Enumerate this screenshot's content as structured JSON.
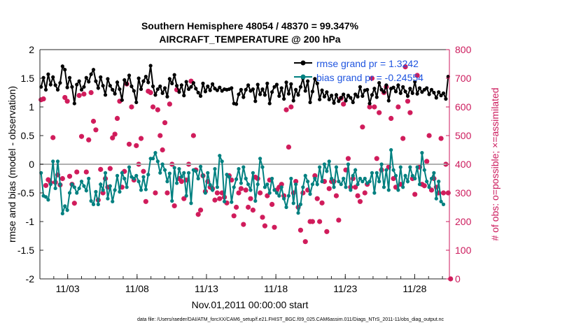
{
  "chart_data": {
    "type": "line",
    "title_line1": "Southern Hemisphere 48054 / 48370 = 99.347%",
    "title_line2": "AIRCRAFT_TEMPERATURE @ 200 hPa",
    "ylabel_left": "rmse and bias (model - observation)",
    "ylabel_right": "# of obs: o=possible; ×=assimilated",
    "xlabel": "Nov.01,2011 00:00:00 start",
    "footer": "data file: /Users/raeder/DAI/ATM_forcXX/CAM6_setup/f.e21.FHIST_BGC.f09_025.CAM6assim.011/Diags_NTrS_2011-11/obs_diag_output.nc",
    "legend": [
      "rmse grand pr = 1.3242",
      "bias grand pr = -0.24554"
    ],
    "xlim": [
      1.0,
      30.5
    ],
    "ylim_left": [
      -2,
      2
    ],
    "ylim_right": [
      0,
      800
    ],
    "left_ticks": [
      -2,
      -1.5,
      -1,
      -0.5,
      0,
      0.5,
      1,
      1.5,
      2
    ],
    "left_tick_labels": [
      "-2",
      "-1.5",
      "-1",
      "-0.5",
      "0",
      "0.5",
      "1",
      "1.5",
      "2"
    ],
    "right_ticks": [
      0,
      100,
      200,
      300,
      400,
      500,
      600,
      700,
      800
    ],
    "right_tick_labels": [
      "0",
      "100",
      "200",
      "300",
      "400",
      "500",
      "600",
      "700",
      "800"
    ],
    "x_ticks": [
      3,
      8,
      13,
      18,
      23,
      28
    ],
    "x_tick_labels": [
      "11/03",
      "11/08",
      "11/13",
      "11/18",
      "11/23",
      "11/28"
    ],
    "colors": {
      "rmse": "#000000",
      "bias": "#008080",
      "obs": "#d01a5a",
      "legend_text": "#1f55e0",
      "zero_line": "#b0b0b0",
      "right_axis": "#cc1a5c"
    },
    "series": [
      {
        "name": "rmse",
        "values": [
          1.35,
          1.51,
          1.3,
          1.57,
          1.39,
          1.52,
          1.38,
          1.3,
          1.42,
          1.71,
          1.65,
          1.34,
          1.51,
          1.35,
          1.06,
          1.39,
          1.45,
          1.3,
          1.35,
          1.51,
          1.44,
          1.57,
          1.65,
          1.45,
          1.33,
          1.52,
          1.37,
          1.21,
          1.49,
          1.37,
          1.3,
          1.23,
          1.43,
          1.31,
          1.12,
          1.47,
          1.4,
          1.55,
          1.36,
          1.28,
          1.08,
          1.5,
          1.31,
          1.45,
          1.53,
          1.43,
          1.72,
          1.36,
          1.21,
          1.31,
          1.36,
          1.24,
          1.33,
          1.18,
          1.49,
          1.41,
          1.56,
          1.37,
          1.26,
          1.38,
          1.2,
          1.44,
          1.31,
          1.35,
          1.42,
          1.32,
          1.25,
          1.19,
          1.41,
          1.27,
          1.36,
          1.29,
          1.4,
          1.32,
          1.29,
          1.34,
          1.28,
          1.31,
          1.3,
          1.31,
          1.33,
          1.06,
          1.05,
          1.22,
          1.3,
          1.17,
          1.3,
          1.38,
          1.28,
          1.31,
          1.1,
          1.39,
          1.22,
          1.31,
          1.21,
          1.41,
          1.06,
          1.26,
          1.35,
          1.39,
          1.19,
          1.33,
          1.14,
          1.43,
          1.23,
          1.4,
          1.11,
          1.3,
          1.21,
          1.35,
          1.5,
          1.28,
          1.45,
          1.08,
          1.27,
          1.49,
          1.41,
          1.13,
          1.29,
          1.18,
          1.26,
          1.13,
          1.2,
          1.07,
          1.21,
          1.1,
          1.16,
          1.22,
          1.11,
          1.2,
          1.16,
          1.08,
          1.22,
          1.18,
          1.35,
          1.19,
          1.29,
          1.3,
          1.06,
          1.21,
          1.32,
          1.17,
          1.42,
          1.3,
          1.26,
          1.38,
          1.11,
          1.32,
          1.34,
          1.27,
          1.38,
          1.24,
          1.35,
          1.27,
          1.19,
          1.32,
          1.24,
          1.44,
          1.23,
          1.33,
          1.26,
          1.3,
          1.33,
          1.22,
          1.3,
          1.25,
          1.16,
          1.26,
          1.2,
          1.24,
          1.14,
          1.53
        ]
      },
      {
        "name": "bias",
        "values": [
          -0.15,
          -0.55,
          -0.57,
          -0.62,
          -0.35,
          0.05,
          -0.42,
          0.05,
          -0.35,
          -0.86,
          -0.73,
          -0.8,
          -0.5,
          -0.35,
          -0.4,
          -0.5,
          -0.42,
          -0.3,
          -0.38,
          -0.46,
          -0.25,
          -0.64,
          -0.7,
          -0.48,
          -0.7,
          -0.35,
          -0.45,
          -0.15,
          -0.6,
          -0.38,
          -0.65,
          -0.45,
          -0.2,
          -0.48,
          -0.15,
          -0.25,
          -0.4,
          -0.05,
          -0.22,
          -0.25,
          -0.2,
          -0.3,
          -0.45,
          -0.22,
          -0.44,
          -0.18,
          0.1,
          0.1,
          0.2,
          0.05,
          -0.15,
          0.0,
          -0.1,
          -0.3,
          -0.16,
          -0.64,
          -0.06,
          -0.33,
          -0.08,
          -0.22,
          -0.15,
          -0.55,
          -0.15,
          -0.68,
          -0.1,
          -0.12,
          -0.25,
          -0.04,
          -0.2,
          -0.5,
          -0.15,
          -0.36,
          -0.45,
          -0.08,
          -0.4,
          0.15,
          0.05,
          -0.65,
          -0.18,
          -0.22,
          -0.66,
          -0.4,
          -0.26,
          -0.08,
          -0.33,
          -0.05,
          -0.25,
          -0.35,
          -0.45,
          -0.15,
          -0.64,
          -0.35,
          0.1,
          -0.05,
          -0.4,
          -0.35,
          -0.5,
          -0.25,
          -0.45,
          -0.5,
          -0.55,
          -0.4,
          -0.6,
          -0.75,
          -0.55,
          -0.25,
          -0.68,
          -0.35,
          -0.85,
          -0.7,
          -0.4,
          -0.2,
          -0.3,
          -0.52,
          -0.35,
          -0.25,
          -0.35,
          -0.05,
          -0.3,
          0.0,
          -0.12,
          0.05,
          -0.25,
          -0.4,
          -0.05,
          -0.3,
          -0.35,
          -0.25,
          -0.4,
          0.0,
          -0.45,
          -0.2,
          -0.1,
          -0.35,
          -0.25,
          -0.3,
          -0.25,
          -0.33,
          -0.3,
          -0.15,
          -0.5,
          -0.15,
          -0.3,
          0.0,
          -0.4,
          -0.1,
          -0.45,
          0.25,
          -0.1,
          -0.2,
          -0.45,
          -0.05,
          -0.4,
          -0.2,
          -0.3,
          -0.05,
          -0.2,
          -0.25,
          -0.05,
          -0.35,
          0.2,
          -0.1,
          -0.3,
          -0.4,
          -0.25,
          -0.15,
          -0.6,
          -0.3,
          -0.65,
          -0.7
        ]
      },
      {
        "name": "obs_possible",
        "values": [
          625,
          628,
          326,
          346,
          336,
          493,
          337,
          363,
          328,
          350,
          633,
          620,
          358,
          330,
          264,
          373,
          640,
          497,
          645,
          373,
          485,
          650,
          550,
          520,
          275,
          382,
          300,
          350,
          320,
          385,
          492,
          505,
          560,
          620,
          320,
          375,
          680,
          470,
          600,
          345,
          465,
          400,
          490,
          375,
          270,
          655,
          650,
          600,
          300,
          590,
          500,
          450,
          545,
          300,
          610,
          400,
          255,
          660,
          350,
          340,
          280,
          345,
          400,
          690,
          500,
          380,
          225,
          240,
          360,
          305,
          340,
          320,
          315,
          275,
          300,
          280,
          300,
          285,
          265,
          360,
          345,
          220,
          250,
          300,
          315,
          190,
          310,
          250,
          280,
          240,
          355,
          350,
          300,
          215,
          185,
          290,
          345,
          260,
          180,
          310,
          320,
          330,
          290,
          590,
          460,
          600,
          300,
          340,
          250,
          170,
          300,
          130,
          310,
          200,
          200,
          360,
          280,
          200,
          265,
          340,
          165,
          315,
          340,
          340,
          290,
          205,
          630,
          610,
          380,
          420,
          320,
          350,
          320,
          290,
          270,
          530,
          300,
          330,
          600,
          700,
          600,
          420,
          580,
          380,
          650,
          670,
          390,
          560,
          350,
          320,
          600,
          330,
          490,
          740,
          620,
          580,
          350,
          295,
          710,
          390,
          330,
          325,
          410,
          500,
          310,
          350,
          320,
          300,
          490,
          300,
          400,
          300,
          0
        ]
      },
      {
        "name": "obs_assimilated",
        "values": [
          625,
          628,
          326,
          346,
          336,
          493,
          337,
          363,
          328,
          350,
          633,
          620,
          358,
          330,
          264,
          373,
          640,
          497,
          645,
          373,
          485,
          650,
          550,
          520,
          275,
          382,
          300,
          350,
          320,
          385,
          492,
          505,
          560,
          620,
          320,
          375,
          680,
          470,
          600,
          345,
          465,
          400,
          490,
          375,
          270,
          655,
          650,
          600,
          300,
          590,
          500,
          450,
          545,
          300,
          610,
          400,
          255,
          660,
          350,
          340,
          280,
          345,
          400,
          690,
          500,
          380,
          225,
          240,
          360,
          305,
          340,
          320,
          315,
          275,
          300,
          280,
          300,
          285,
          265,
          360,
          345,
          220,
          250,
          300,
          315,
          190,
          310,
          250,
          280,
          240,
          355,
          350,
          300,
          215,
          185,
          290,
          345,
          260,
          180,
          310,
          320,
          330,
          290,
          590,
          460,
          600,
          300,
          340,
          250,
          170,
          300,
          130,
          310,
          200,
          200,
          360,
          280,
          200,
          265,
          340,
          165,
          315,
          340,
          340,
          290,
          205,
          630,
          610,
          380,
          420,
          320,
          350,
          320,
          290,
          270,
          530,
          300,
          330,
          600,
          700,
          600,
          420,
          580,
          380,
          650,
          670,
          390,
          560,
          350,
          320,
          600,
          330,
          490,
          740,
          620,
          580,
          350,
          295,
          710,
          390,
          330,
          325,
          410,
          500,
          310,
          350,
          320,
          300,
          490,
          300,
          400,
          300,
          0
        ]
      }
    ]
  }
}
